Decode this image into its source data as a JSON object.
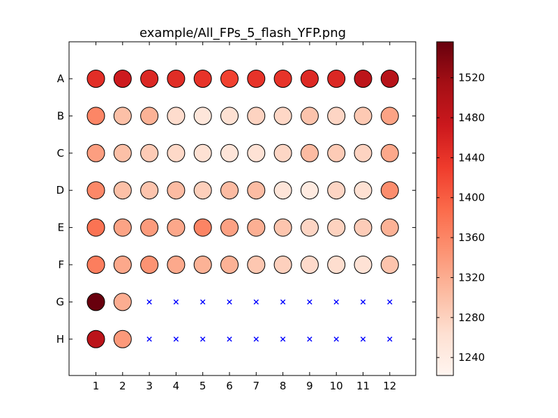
{
  "chart_data": {
    "type": "heatmap",
    "title": "example/All_FPs_5_flash_YFP.png",
    "rows": [
      "A",
      "B",
      "C",
      "D",
      "E",
      "F",
      "G",
      "H"
    ],
    "columns": [
      "1",
      "2",
      "3",
      "4",
      "5",
      "6",
      "7",
      "8",
      "9",
      "10",
      "11",
      "12"
    ],
    "values": [
      [
        1446,
        1470,
        1454,
        1448,
        1440,
        1425,
        1440,
        1440,
        1452,
        1454,
        1488,
        1495
      ],
      [
        1360,
        1300,
        1315,
        1268,
        1252,
        1262,
        1278,
        1274,
        1296,
        1276,
        1290,
        1330
      ],
      [
        1335,
        1300,
        1288,
        1272,
        1262,
        1254,
        1260,
        1275,
        1305,
        1288,
        1278,
        1325
      ],
      [
        1358,
        1300,
        1295,
        1305,
        1283,
        1305,
        1304,
        1254,
        1244,
        1276,
        1262,
        1352
      ],
      [
        1380,
        1330,
        1338,
        1326,
        1362,
        1332,
        1318,
        1294,
        1276,
        1280,
        1286,
        1315
      ],
      [
        1368,
        1325,
        1346,
        1324,
        1315,
        1315,
        1292,
        1282,
        1270,
        1266,
        1260,
        1295
      ],
      [
        1555,
        1320,
        null,
        null,
        null,
        null,
        null,
        null,
        null,
        null,
        null,
        null
      ],
      [
        1490,
        1340,
        null,
        null,
        null,
        null,
        null,
        null,
        null,
        null,
        null,
        null
      ]
    ],
    "missing_marker": "×",
    "colormap": [
      "#fff5f0",
      "#fee0d2",
      "#fcbba1",
      "#fc9272",
      "#fb6a4a",
      "#ef3b2c",
      "#cb181d",
      "#a50f15",
      "#67000d"
    ],
    "missing_color": "#0000ff",
    "colorbar": {
      "min": 1222,
      "max": 1556,
      "ticks": [
        1240,
        1280,
        1320,
        1360,
        1400,
        1440,
        1480,
        1520
      ]
    }
  }
}
